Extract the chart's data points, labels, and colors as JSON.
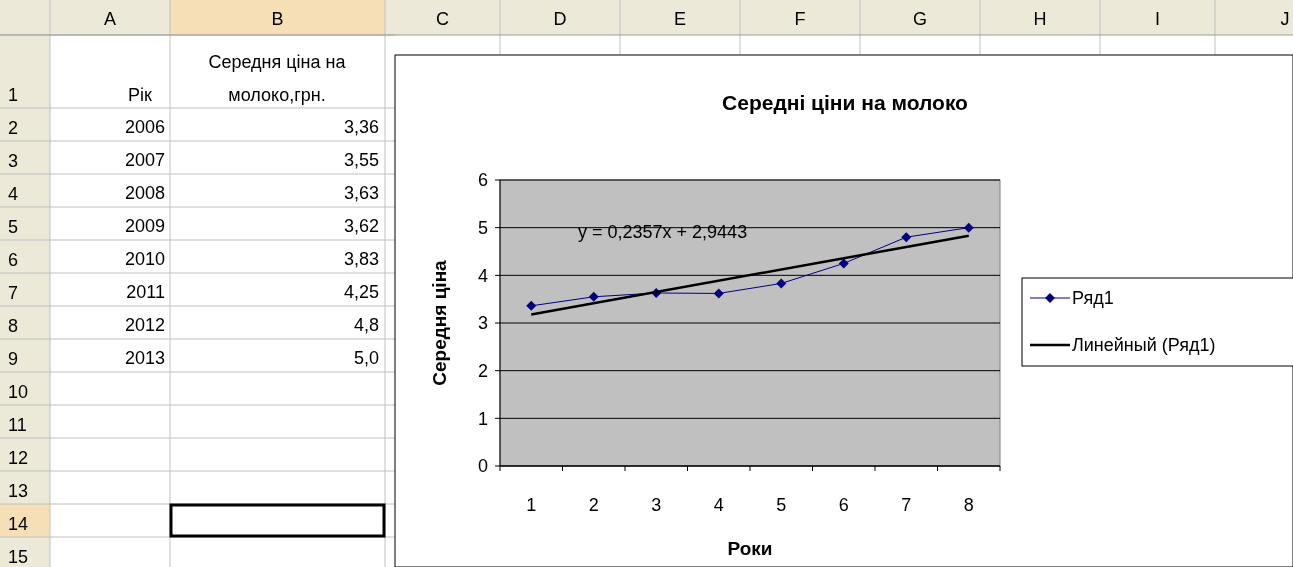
{
  "chart_data": {
    "type": "line",
    "title": "Середні ціни на молоко",
    "xlabel": "Роки",
    "ylabel": "Середня ціна",
    "categories": [
      "1",
      "2",
      "3",
      "4",
      "5",
      "6",
      "7",
      "8"
    ],
    "series": [
      {
        "name": "Ряд1",
        "color": "#000080",
        "marker": "diamond",
        "values": [
          3.36,
          3.55,
          3.63,
          3.62,
          3.83,
          4.25,
          4.8,
          5.0
        ]
      },
      {
        "name": "Линейный (Ряд1)",
        "type": "line",
        "color": "#000000",
        "marker": "none",
        "x": [
          "1",
          "8"
        ],
        "values": [
          3.18,
          4.83
        ]
      }
    ],
    "ylim": [
      0,
      6
    ],
    "yticks": [
      0,
      1,
      2,
      3,
      4,
      5,
      6
    ],
    "grid": "y",
    "legend": "right",
    "annotations": [
      "y = 0,2357x + 2,9443",
      "Рік",
      "Середня ціна на молоко,грн.",
      "2006",
      "2007",
      "2008",
      "2009",
      "2010",
      "2011",
      "2012",
      "2013",
      "3,36",
      "3,55",
      "3,63",
      "3,62",
      "3,83",
      "4,25",
      "4,8",
      "5,0",
      "A",
      "B",
      "C",
      "D",
      "E",
      "F",
      "G",
      "H",
      "I",
      "J",
      "1",
      "2",
      "3",
      "4",
      "5",
      "6",
      "7",
      "8",
      "9",
      "10",
      "11",
      "12",
      "13",
      "14",
      "15"
    ]
  }
}
